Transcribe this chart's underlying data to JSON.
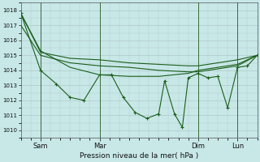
{
  "background_color": "#c8e8e8",
  "grid_color": "#b0c8c8",
  "line_color": "#1a5e1a",
  "xlabel": "Pression niveau de la mer( hPa )",
  "ylim": [
    1009.5,
    1018.5
  ],
  "yticks": [
    1010,
    1011,
    1012,
    1013,
    1014,
    1015,
    1016,
    1017,
    1018
  ],
  "xlim": [
    0,
    120
  ],
  "vline_positions": [
    10,
    40,
    90,
    110
  ],
  "xtick_positions": [
    10,
    40,
    90,
    110
  ],
  "xtick_labels": [
    "Sam",
    "Mar",
    "Dim",
    "Lun"
  ],
  "series1_x": [
    0,
    10,
    25,
    40,
    55,
    70,
    85,
    90,
    100,
    110,
    120
  ],
  "series1_y": [
    1017.8,
    1015.2,
    1014.8,
    1014.7,
    1014.5,
    1014.4,
    1014.3,
    1014.3,
    1014.5,
    1014.7,
    1015.0
  ],
  "series2_x": [
    0,
    10,
    25,
    40,
    55,
    70,
    85,
    90,
    100,
    110,
    120
  ],
  "series2_y": [
    1017.0,
    1015.0,
    1014.5,
    1014.3,
    1014.2,
    1014.0,
    1013.9,
    1013.9,
    1014.1,
    1014.3,
    1015.0
  ],
  "series3_x": [
    0,
    10,
    25,
    40,
    55,
    70,
    85,
    90,
    100,
    110,
    120
  ],
  "series3_y": [
    1017.8,
    1015.3,
    1014.2,
    1013.7,
    1013.6,
    1013.6,
    1013.8,
    1014.0,
    1014.2,
    1014.4,
    1015.0
  ],
  "series4_x": [
    0,
    10,
    18,
    25,
    32,
    40,
    46,
    52,
    58,
    64,
    70,
    73,
    78,
    82,
    85,
    90,
    95,
    100,
    105,
    110,
    115,
    120
  ],
  "series4_y": [
    1017.8,
    1014.0,
    1013.1,
    1012.2,
    1012.0,
    1013.7,
    1013.7,
    1012.2,
    1011.2,
    1010.8,
    1011.1,
    1013.3,
    1011.1,
    1010.2,
    1013.5,
    1013.8,
    1013.5,
    1013.6,
    1011.5,
    1014.2,
    1014.3,
    1015.0
  ]
}
